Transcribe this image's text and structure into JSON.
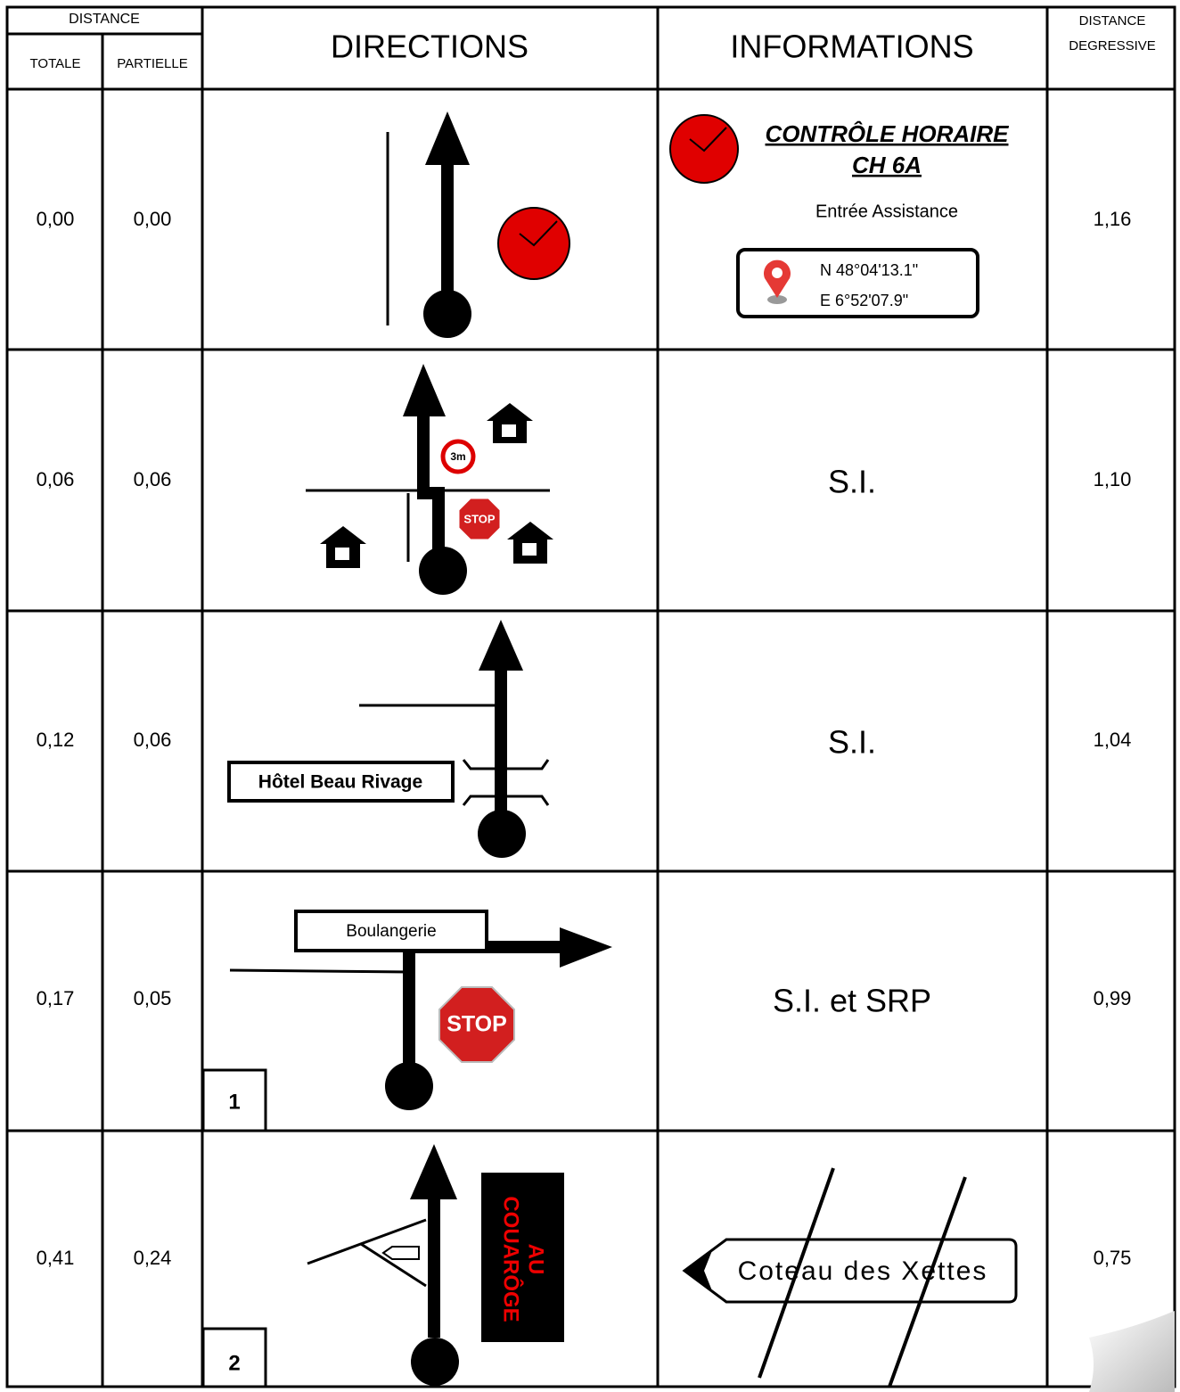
{
  "header": {
    "distance": "DISTANCE",
    "totale": "TOTALE",
    "partielle": "PARTIELLE",
    "directions": "DIRECTIONS",
    "informations": "INFORMATIONS",
    "degressive": [
      "DISTANCE",
      "DEGRESSIVE"
    ]
  },
  "rows": [
    {
      "totale": "0,00",
      "partielle": "0,00",
      "degressive": "1,16",
      "info": {
        "title": [
          "CONTRÔLE HORAIRE",
          "CH 6A"
        ],
        "subtitle": "Entrée Assistance",
        "gps": [
          "N 48°04'13.1\"",
          "E 6°52'07.9\""
        ]
      }
    },
    {
      "totale": "0,06",
      "partielle": "0,06",
      "degressive": "1,10",
      "info": "S.I.",
      "directions": {
        "limit_sign": "3m",
        "stop": "STOP"
      }
    },
    {
      "totale": "0,12",
      "partielle": "0,06",
      "degressive": "1,04",
      "info": "S.I.",
      "directions": {
        "label": "Hôtel Beau Rivage"
      }
    },
    {
      "totale": "0,17",
      "partielle": "0,05",
      "degressive": "0,99",
      "info": "S.I. et SRP",
      "directions": {
        "label": "Boulangerie",
        "stop": "STOP",
        "step": "1"
      }
    },
    {
      "totale": "0,41",
      "partielle": "0,24",
      "degressive": "0,75",
      "info": {
        "sign": "Coteau des Xettes"
      },
      "directions": {
        "sign": [
          "AU",
          "COUARÔGE"
        ],
        "step": "2"
      }
    }
  ]
}
